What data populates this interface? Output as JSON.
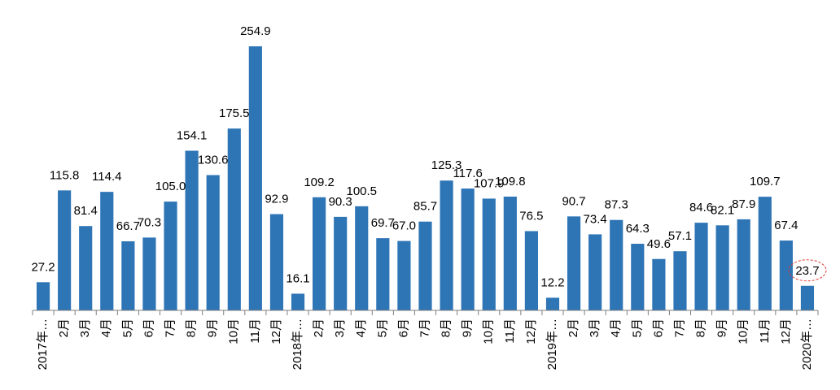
{
  "chart_data": {
    "type": "bar",
    "title": "",
    "xlabel": "",
    "ylabel": "",
    "ylim": [
      0,
      260
    ],
    "grid": false,
    "legend": "none",
    "bar_color": "#2E75B6",
    "highlight_color": "#E03C31",
    "highlight_index": 36,
    "categories": [
      "2017年…",
      "2月",
      "3月",
      "4月",
      "5月",
      "6月",
      "7月",
      "8月",
      "9月",
      "10月",
      "11月",
      "12月",
      "2018年…",
      "2月",
      "3月",
      "4月",
      "5月",
      "6月",
      "7月",
      "8月",
      "9月",
      "10月",
      "11月",
      "12月",
      "2019年…",
      "2月",
      "3月",
      "4月",
      "5月",
      "6月",
      "7月",
      "8月",
      "9月",
      "10月",
      "11月",
      "12月",
      "2020年…"
    ],
    "values": [
      27.2,
      115.8,
      81.4,
      114.4,
      66.7,
      70.3,
      105.0,
      154.1,
      130.6,
      175.5,
      254.9,
      92.9,
      16.1,
      109.2,
      90.3,
      100.5,
      69.7,
      67.0,
      85.7,
      125.3,
      117.6,
      107.9,
      109.8,
      76.5,
      12.2,
      90.7,
      73.4,
      87.3,
      64.3,
      49.6,
      57.1,
      84.6,
      82.1,
      87.9,
      109.7,
      67.4,
      23.7
    ],
    "labels": [
      "27.2",
      "115.8",
      "81.4",
      "114.4",
      "66.7",
      "70.3",
      "105.0",
      "154.1",
      "130.6",
      "175.5",
      "254.9",
      "92.9",
      "16.1",
      "109.2",
      "90.3",
      "100.5",
      "69.7",
      "67.0",
      "85.7",
      "125.3",
      "117.6",
      "107.9",
      "109.8",
      "76.5",
      "12.2",
      "90.7",
      "73.4",
      "87.3",
      "64.3",
      "49.6",
      "57.1",
      "84.6",
      "82.1",
      "87.9",
      "109.7",
      "67.4",
      "23.7"
    ]
  }
}
